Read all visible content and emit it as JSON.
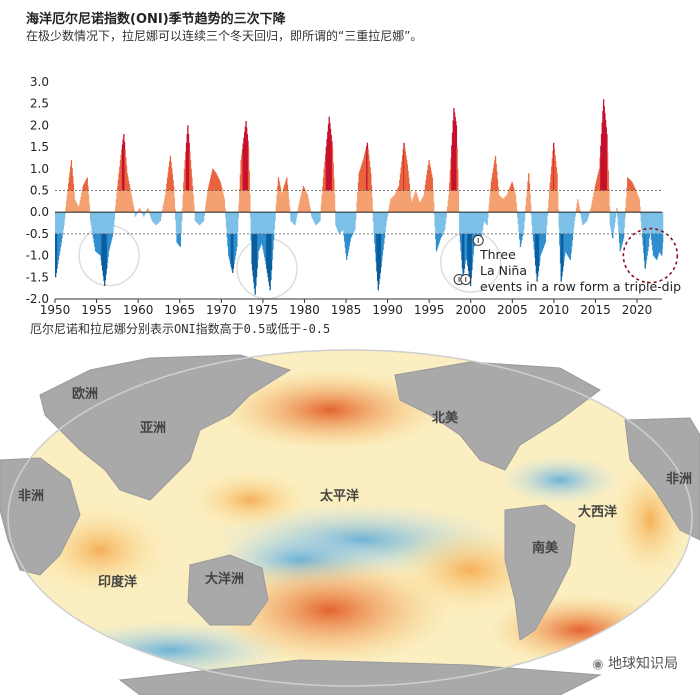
{
  "header": {
    "title": "海洋厄尔尼诺指数(ONI)季节趋势的三次下降",
    "subtitle": "在极少数情况下，拉尼娜可以连续三个冬天回归，即所谓的“三重拉尼娜”。"
  },
  "chart_data": {
    "type": "area",
    "yticks": [
      "3.0",
      "2.5",
      "2.0",
      "1.5",
      "1.0",
      "0.5",
      "0.0",
      "-0.5",
      "-1.0",
      "-1.5",
      "-2.0"
    ],
    "xticks": [
      "1950",
      "1955",
      "1960",
      "1965",
      "1970",
      "1975",
      "1980",
      "1985",
      "1990",
      "1995",
      "2000",
      "2005",
      "2010",
      "2015",
      "2020"
    ],
    "ylim": [
      -2.0,
      3.0
    ],
    "xlim": [
      1950,
      2023
    ],
    "thresholds": [
      0.5,
      -0.5
    ],
    "colors": {
      "positive": "#f5a070",
      "strong_positive": "#c8102e",
      "negative": "#7cc0e8",
      "strong_negative": "#0a5fa0"
    },
    "oni": [
      [
        1950.0,
        -1.5
      ],
      [
        1950.6,
        -0.8
      ],
      [
        1951.0,
        -0.3
      ],
      [
        1951.4,
        0.4
      ],
      [
        1951.9,
        1.2
      ],
      [
        1952.3,
        0.3
      ],
      [
        1952.8,
        0.1
      ],
      [
        1953.3,
        0.6
      ],
      [
        1953.8,
        0.8
      ],
      [
        1954.2,
        -0.2
      ],
      [
        1954.8,
        -0.9
      ],
      [
        1955.4,
        -1.0
      ],
      [
        1955.9,
        -1.7
      ],
      [
        1956.4,
        -0.9
      ],
      [
        1956.9,
        -0.5
      ],
      [
        1957.3,
        0.3
      ],
      [
        1957.8,
        1.2
      ],
      [
        1958.2,
        1.8
      ],
      [
        1958.6,
        0.9
      ],
      [
        1959.1,
        0.4
      ],
      [
        1959.6,
        -0.1
      ],
      [
        1960.1,
        0.1
      ],
      [
        1960.6,
        -0.1
      ],
      [
        1961.1,
        0.1
      ],
      [
        1961.6,
        -0.2
      ],
      [
        1962.1,
        -0.3
      ],
      [
        1962.6,
        -0.2
      ],
      [
        1963.2,
        0.4
      ],
      [
        1963.8,
        1.3
      ],
      [
        1964.2,
        0.6
      ],
      [
        1964.6,
        -0.7
      ],
      [
        1965.0,
        -0.8
      ],
      [
        1965.5,
        1.0
      ],
      [
        1965.9,
        2.0
      ],
      [
        1966.3,
        1.0
      ],
      [
        1966.8,
        -0.2
      ],
      [
        1967.3,
        -0.3
      ],
      [
        1967.8,
        -0.2
      ],
      [
        1968.3,
        0.5
      ],
      [
        1968.9,
        1.0
      ],
      [
        1969.3,
        0.9
      ],
      [
        1969.8,
        0.7
      ],
      [
        1970.3,
        0.3
      ],
      [
        1970.8,
        -1.0
      ],
      [
        1971.3,
        -1.4
      ],
      [
        1971.8,
        -0.8
      ],
      [
        1972.3,
        1.2
      ],
      [
        1972.9,
        2.1
      ],
      [
        1973.2,
        1.5
      ],
      [
        1973.6,
        -1.2
      ],
      [
        1974.0,
        -1.9
      ],
      [
        1974.4,
        -0.9
      ],
      [
        1974.8,
        -0.7
      ],
      [
        1975.3,
        -1.2
      ],
      [
        1975.8,
        -1.8
      ],
      [
        1976.3,
        -0.4
      ],
      [
        1976.8,
        0.8
      ],
      [
        1977.2,
        0.4
      ],
      [
        1977.8,
        0.8
      ],
      [
        1978.3,
        -0.2
      ],
      [
        1978.8,
        -0.3
      ],
      [
        1979.3,
        0.2
      ],
      [
        1979.8,
        0.6
      ],
      [
        1980.3,
        0.4
      ],
      [
        1980.8,
        -0.1
      ],
      [
        1981.3,
        -0.3
      ],
      [
        1981.8,
        -0.2
      ],
      [
        1982.3,
        1.0
      ],
      [
        1982.9,
        2.2
      ],
      [
        1983.3,
        1.5
      ],
      [
        1983.7,
        -0.3
      ],
      [
        1984.1,
        -0.5
      ],
      [
        1984.6,
        -0.4
      ],
      [
        1985.0,
        -1.1
      ],
      [
        1985.5,
        -0.6
      ],
      [
        1986.0,
        -0.4
      ],
      [
        1986.5,
        0.9
      ],
      [
        1987.0,
        1.2
      ],
      [
        1987.5,
        1.6
      ],
      [
        1987.9,
        0.9
      ],
      [
        1988.3,
        -0.5
      ],
      [
        1988.8,
        -1.8
      ],
      [
        1989.3,
        -1.0
      ],
      [
        1989.8,
        -0.2
      ],
      [
        1990.3,
        0.3
      ],
      [
        1990.8,
        0.4
      ],
      [
        1991.3,
        0.6
      ],
      [
        1991.9,
        1.6
      ],
      [
        1992.3,
        1.1
      ],
      [
        1992.8,
        0.2
      ],
      [
        1993.3,
        0.5
      ],
      [
        1993.8,
        0.2
      ],
      [
        1994.3,
        0.4
      ],
      [
        1994.9,
        1.2
      ],
      [
        1995.3,
        0.8
      ],
      [
        1995.8,
        -0.9
      ],
      [
        1996.3,
        -0.6
      ],
      [
        1996.8,
        -0.4
      ],
      [
        1997.3,
        0.4
      ],
      [
        1997.9,
        2.4
      ],
      [
        1998.2,
        2.0
      ],
      [
        1998.6,
        -0.5
      ],
      [
        1999.0,
        -1.5
      ],
      [
        1999.4,
        -1.0
      ],
      [
        1999.9,
        -1.7
      ],
      [
        2000.3,
        -0.8
      ],
      [
        2000.8,
        -0.7
      ],
      [
        2001.1,
        -0.7
      ],
      [
        2001.5,
        -0.2
      ],
      [
        2001.9,
        -0.3
      ],
      [
        2002.4,
        0.7
      ],
      [
        2002.9,
        1.3
      ],
      [
        2003.3,
        0.4
      ],
      [
        2003.8,
        0.3
      ],
      [
        2004.3,
        0.4
      ],
      [
        2004.9,
        0.7
      ],
      [
        2005.3,
        0.4
      ],
      [
        2005.9,
        -0.8
      ],
      [
        2006.3,
        -0.4
      ],
      [
        2006.9,
        0.9
      ],
      [
        2007.3,
        -0.3
      ],
      [
        2007.9,
        -1.6
      ],
      [
        2008.3,
        -1.0
      ],
      [
        2008.9,
        -0.7
      ],
      [
        2009.4,
        0.5
      ],
      [
        2009.9,
        1.6
      ],
      [
        2010.3,
        0.9
      ],
      [
        2010.8,
        -1.6
      ],
      [
        2011.3,
        -0.9
      ],
      [
        2011.9,
        -1.1
      ],
      [
        2012.4,
        -0.2
      ],
      [
        2012.8,
        0.3
      ],
      [
        2013.4,
        -0.3
      ],
      [
        2013.9,
        -0.2
      ],
      [
        2014.4,
        0.1
      ],
      [
        2014.9,
        0.6
      ],
      [
        2015.4,
        1.0
      ],
      [
        2015.9,
        2.6
      ],
      [
        2016.3,
        1.8
      ],
      [
        2016.7,
        -0.3
      ],
      [
        2017.0,
        -0.6
      ],
      [
        2017.5,
        0.1
      ],
      [
        2017.9,
        -0.9
      ],
      [
        2018.3,
        -0.6
      ],
      [
        2018.8,
        0.8
      ],
      [
        2019.3,
        0.7
      ],
      [
        2019.8,
        0.5
      ],
      [
        2020.2,
        0.3
      ],
      [
        2020.5,
        -0.4
      ],
      [
        2020.9,
        -1.3
      ],
      [
        2021.3,
        -0.8
      ],
      [
        2021.5,
        -0.4
      ],
      [
        2021.9,
        -1.0
      ],
      [
        2022.3,
        -1.1
      ],
      [
        2022.6,
        -0.9
      ],
      [
        2022.9,
        -1.0
      ],
      [
        2023.0,
        -0.7
      ]
    ],
    "annotations": [
      {
        "text": "Three"
      },
      {
        "text": "La Niña"
      },
      {
        "text": "events in a row form a triple-dip"
      }
    ]
  },
  "caption": "厄尔尼诺和拉尼娜分别表示ONI指数高于0.5或低于-0.5",
  "map": {
    "labels": {
      "europe": "欧洲",
      "asia": "亚洲",
      "africa_left": "非洲",
      "north_america": "北美",
      "africa_right": "非洲",
      "pacific": "太平洋",
      "atlantic": "大西洋",
      "south_america": "南美",
      "indian": "印度洋",
      "oceania": "大洋洲"
    },
    "colors": {
      "warm": "#e0501a",
      "cool": "#1a7cc2",
      "land": "#a8a8a8"
    }
  },
  "watermark": "地球知识局"
}
